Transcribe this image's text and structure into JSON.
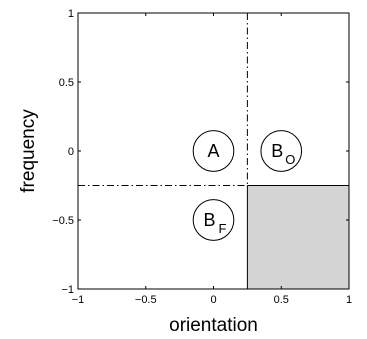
{
  "chart_data": {
    "type": "diagram-plot",
    "xlabel": "orientation",
    "ylabel": "frequency",
    "xlim": [
      -1,
      1
    ],
    "ylim": [
      -1,
      1
    ],
    "xticks": [
      -1,
      -0.5,
      0,
      0.5,
      1
    ],
    "xtick_labels": [
      "−1",
      "−0.5",
      "0",
      "0.5",
      "1"
    ],
    "yticks": [
      -1,
      -0.5,
      0,
      0.5,
      1
    ],
    "ytick_labels": [
      "−1",
      "−0.5",
      "0",
      "0.5",
      "1"
    ],
    "grid": false,
    "threshold_x": 0.25,
    "threshold_y": -0.25,
    "shaded_region": {
      "x": [
        0.25,
        1
      ],
      "y": [
        -1,
        -0.25
      ],
      "color": "#d4d4d4"
    },
    "circles": [
      {
        "label": "A",
        "subscript": "",
        "x": 0,
        "y": 0
      },
      {
        "label": "B",
        "subscript": "O",
        "x": 0.5,
        "y": 0
      },
      {
        "label": "B",
        "subscript": "F",
        "x": 0,
        "y": -0.5
      }
    ]
  }
}
